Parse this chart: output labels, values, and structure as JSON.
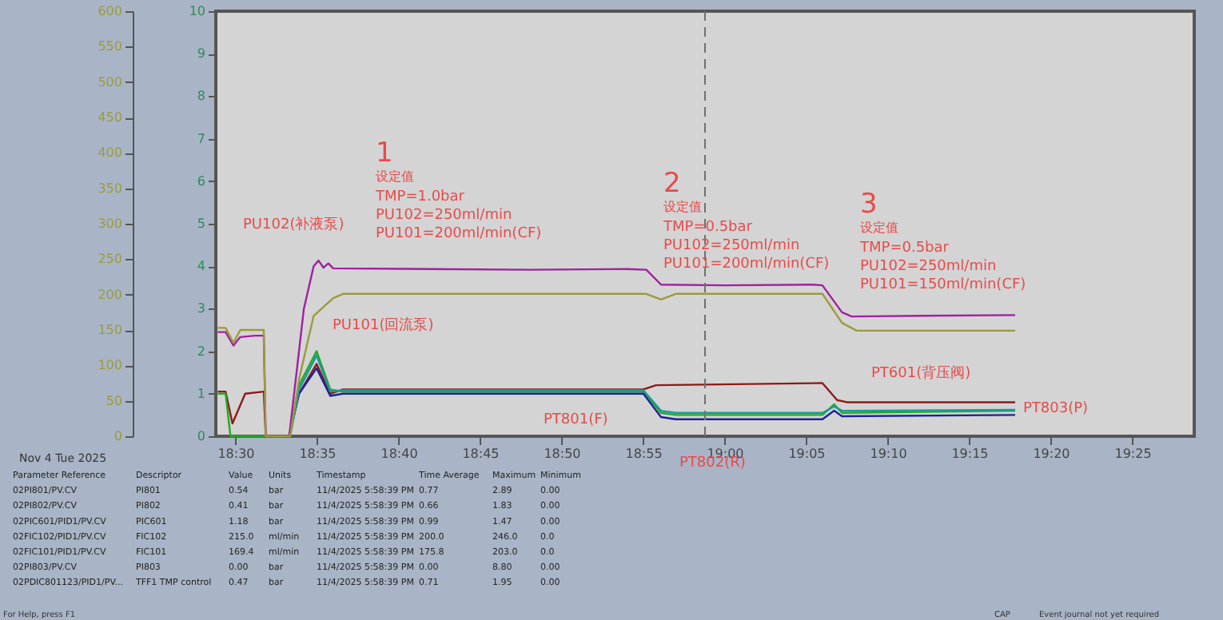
{
  "chart_data": {
    "type": "line",
    "series": [
      {
        "name": "PU102(补液泵)",
        "color": "#a020a0",
        "axis": "y2",
        "x": [
          18.482,
          18.49,
          18.498,
          18.505,
          18.52,
          18.529,
          18.531,
          18.555,
          18.56,
          18.57,
          18.58,
          18.585,
          18.59,
          18.595,
          18.6,
          18.7,
          18.8,
          18.9,
          18.92,
          18.935,
          19.0,
          19.09,
          19.1,
          19.12,
          19.13,
          19.2,
          19.297
        ],
        "values": [
          147,
          147,
          128,
          140,
          142,
          142,
          0,
          0,
          60,
          180,
          240,
          248,
          238,
          244,
          237,
          236,
          235,
          236,
          235,
          214,
          213,
          214,
          213,
          175,
          169,
          170,
          171
        ]
      },
      {
        "name": "PU101(回流泵)",
        "color": "#9b9b3c",
        "axis": "y2",
        "x": [
          18.482,
          18.49,
          18.498,
          18.505,
          18.529,
          18.531,
          18.556,
          18.565,
          18.58,
          18.6,
          18.61,
          18.92,
          18.935,
          18.95,
          19.1,
          19.12,
          19.135,
          19.297
        ],
        "values": [
          153,
          153,
          132,
          150,
          150,
          0,
          0,
          80,
          170,
          195,
          201,
          201,
          193,
          201,
          201,
          160,
          149,
          149
        ]
      },
      {
        "name": "PT601(背压阀)",
        "color": "#8b1a1a",
        "x": [
          18.482,
          18.49,
          18.497,
          18.51,
          18.529,
          18.531,
          18.555,
          18.565,
          18.583,
          18.597,
          18.61,
          18.917,
          18.93,
          19.1,
          19.115,
          19.125,
          19.297
        ],
        "values": [
          1.05,
          1.05,
          0.3,
          1.0,
          1.05,
          0,
          0,
          1.0,
          1.7,
          1.0,
          1.1,
          1.1,
          1.2,
          1.25,
          0.85,
          0.8,
          0.8
        ]
      },
      {
        "name": "PT801(F)",
        "color": "#22aa22",
        "x": [
          18.482,
          18.49,
          18.495,
          18.555,
          18.565,
          18.583,
          18.597,
          18.61,
          18.917,
          18.935,
          18.95,
          19.1,
          19.112,
          19.12,
          19.297
        ],
        "values": [
          1.0,
          1.0,
          0,
          0,
          1.2,
          2.0,
          1.1,
          1.05,
          1.05,
          0.55,
          0.5,
          0.5,
          0.75,
          0.55,
          0.6
        ]
      },
      {
        "name": "PT802(R)",
        "color": "#20209a",
        "x": [
          18.555,
          18.565,
          18.583,
          18.597,
          18.61,
          18.917,
          18.935,
          18.95,
          19.1,
          19.112,
          19.12,
          19.297
        ],
        "values": [
          0,
          1.0,
          1.6,
          0.95,
          1.0,
          1.0,
          0.45,
          0.4,
          0.4,
          0.6,
          0.47,
          0.5
        ]
      },
      {
        "name": "PT803(P)",
        "color": "#1a9a9a",
        "x": [
          18.556,
          18.565,
          18.583,
          18.597,
          18.61,
          18.917,
          18.935,
          18.95,
          19.1,
          19.112,
          19.12,
          19.297
        ],
        "values": [
          0,
          1.1,
          1.9,
          1.05,
          1.08,
          1.08,
          0.6,
          0.55,
          0.55,
          0.7,
          0.6,
          0.62
        ]
      }
    ],
    "xlim": [
      18.48,
      19.48
    ],
    "xticks": [
      {
        "value": 18.5,
        "label": "18:30"
      },
      {
        "value": 18.5833,
        "label": "18:35"
      },
      {
        "value": 18.6667,
        "label": "18:40"
      },
      {
        "value": 18.75,
        "label": "18:45"
      },
      {
        "value": 18.8333,
        "label": "18:50"
      },
      {
        "value": 18.9167,
        "label": "18:55"
      },
      {
        "value": 19.0,
        "label": "19:00"
      },
      {
        "value": 19.0833,
        "label": "19:05"
      },
      {
        "value": 19.1667,
        "label": "19:10"
      },
      {
        "value": 19.25,
        "label": "19:15"
      },
      {
        "value": 19.3333,
        "label": "19:20"
      },
      {
        "value": 19.4167,
        "label": "19:25"
      }
    ],
    "ylim": [
      0,
      10
    ],
    "yticks": [
      0,
      1,
      2,
      3,
      4,
      5,
      6,
      7,
      8,
      9,
      10
    ],
    "y2lim": [
      0,
      600
    ],
    "y2ticks": [
      0,
      50,
      100,
      150,
      200,
      250,
      300,
      350,
      400,
      450,
      500,
      550,
      600
    ],
    "ref_lines": [
      {
        "axis": "x",
        "value": 18.98,
        "color": "#707070",
        "line_style": "dashed"
      }
    ],
    "grid": false,
    "line_style": "solid",
    "marker": "none",
    "annotations": [
      "1\n设定值\nTMP=1.0bar\nPU102=250ml/min\nPU101=200ml/min(CF)",
      "2\n设定值\nTMP=0.5bar\nPU102=250ml/min\nPU101=200ml/min(CF)",
      "3\n设定值\nTMP=0.5bar\nPU102=250ml/min\nPU101=150ml/min(CF)",
      "Nov 4 Tue 2025",
      "Parameter Reference\tDescriptor\tValue\tUnits\tTimestamp\tTime Average\tMaximum\tMinimum",
      "02PI801/PV.CV\tPI801\t0.54\tbar\t11/4/2025 5:58:39 PM\t0.77\t2.89\t0.00",
      "02PI802/PV.CV\tPI802\t0.41\tbar\t11/4/2025 5:58:39 PM\t0.66\t1.83\t0.00",
      "02PIC601/PID1/PV.CV\tPIC601\t1.18\tbar\t11/4/2025 5:58:39 PM\t0.99\t1.47\t0.00",
      "02FIC102/PID1/PV.CV\tFIC102\t215.0\tml/min\t11/4/2025 5:58:39 PM\t200.0\t246.0\t0.0",
      "02FIC101/PID1/PV.CV\tFIC101\t169.4\tml/min\t11/4/2025 5:58:39 PM\t175.8\t203.0\t0.0",
      "02PI803/PV.CV\tPI803\t0.00\tbar\t11/4/2025 5:58:39 PM\t0.00\t8.80\t0.00",
      "02PDIC801123/PID1/PV...\tTFF1 TMP control\t0.47\tbar\t11/4/2025 5:58:39 PM\t0.71\t1.95\t0.00",
      "For Help, press F1",
      "CAP",
      "Event journal not yet required"
    ]
  }
}
